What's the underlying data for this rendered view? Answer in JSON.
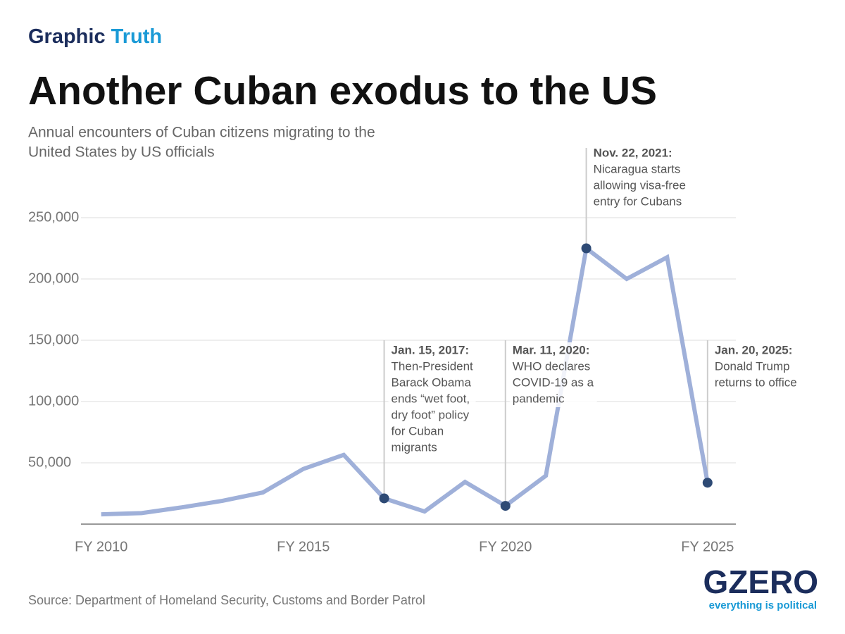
{
  "kicker": [
    "Graphic",
    "Truth"
  ],
  "chart_data": {
    "type": "line",
    "title": "Another Cuban exodus to the US",
    "subtitle": [
      "Annual encounters of Cuban citizens migrating to the",
      "United States by US officials"
    ],
    "x": [
      2010,
      2011,
      2012,
      2013,
      2014,
      2015,
      2016,
      2017,
      2018,
      2019,
      2020,
      2021,
      2022,
      2023,
      2024,
      2025
    ],
    "series": [
      {
        "color": "#9fb0d9",
        "values": [
          8000,
          9000,
          13700,
          19000,
          25800,
          45000,
          56500,
          21000,
          10300,
          34400,
          14900,
          39500,
          225000,
          200000,
          217700,
          33800
        ]
      }
    ],
    "marker_color": "#2e4a75",
    "xlim": [
      2009.5,
      2025.7
    ],
    "xticks": [
      {
        "value": 2010,
        "label": "FY 2010"
      },
      {
        "value": 2015,
        "label": "FY 2015"
      },
      {
        "value": 2020,
        "label": "FY 2020"
      },
      {
        "value": 2025,
        "label": "FY 2025"
      }
    ],
    "ylim": [
      0,
      250000
    ],
    "yticks": [
      {
        "value": 50000,
        "label": "50,000"
      },
      {
        "value": 100000,
        "label": "100,000"
      },
      {
        "value": 150000,
        "label": "150,000"
      },
      {
        "value": 200000,
        "label": "200,000"
      },
      {
        "value": 250000,
        "label": "250,000"
      }
    ],
    "grid": true,
    "annotations": [
      {
        "date": "Jan. 15, 2017:",
        "text": [
          "Then-President",
          "Barack Obama",
          "ends “wet foot,",
          "dry foot” policy",
          "for Cuban",
          "migrants"
        ]
      },
      {
        "date": "Mar. 11, 2020:",
        "text": [
          "WHO declares",
          "COVID-19 as a",
          "pandemic"
        ]
      },
      {
        "date": "Nov. 22, 2021:",
        "text": [
          "Nicaragua starts",
          "allowing visa-free",
          "entry for Cubans"
        ]
      },
      {
        "date": "Jan. 20, 2025:",
        "text": [
          "Donald Trump",
          "returns to office"
        ]
      }
    ]
  },
  "source": "Source: Department of Homeland Security, Customs and Border Patrol",
  "logo": {
    "name": "GZERO",
    "tagline": "everything is political"
  }
}
